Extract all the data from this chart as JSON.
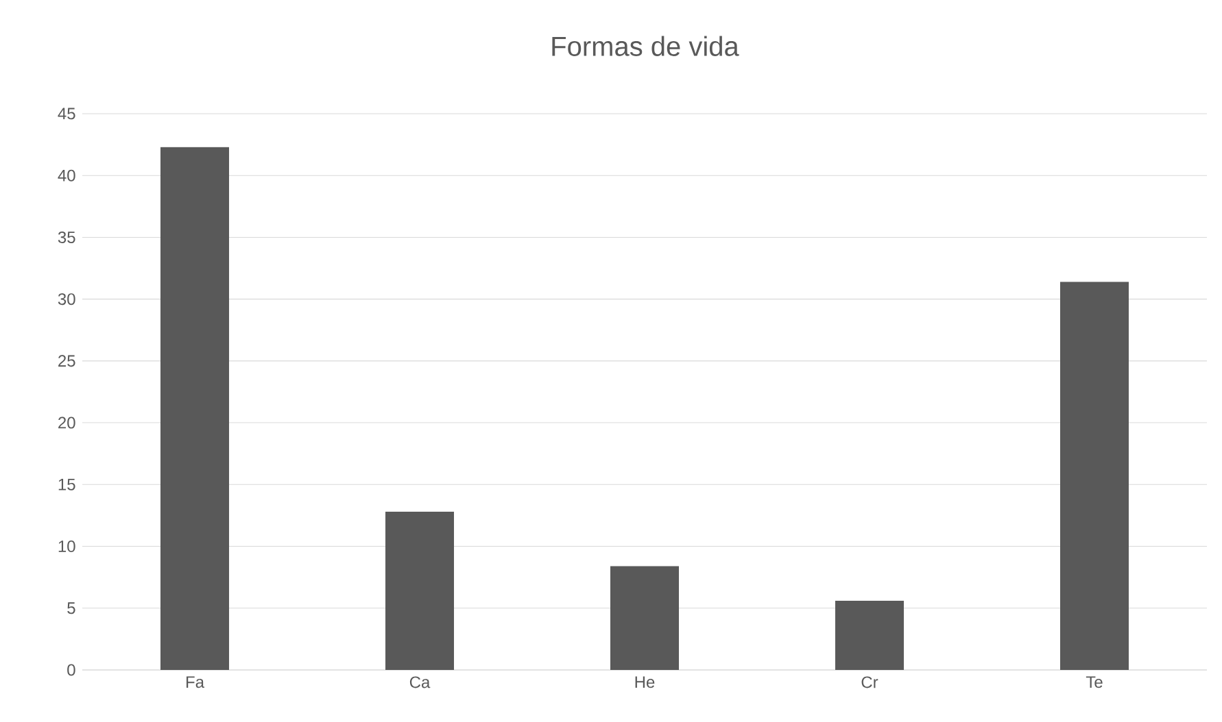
{
  "chart_data": {
    "type": "bar",
    "title": "Formas de vida",
    "categories": [
      "Fa",
      "Ca",
      "He",
      "Cr",
      "Te"
    ],
    "values": [
      42.3,
      12.8,
      8.4,
      5.6,
      31.4
    ],
    "color": "#595959",
    "ylim": [
      0,
      45
    ],
    "yticks": [
      0,
      5,
      10,
      15,
      20,
      25,
      30,
      35,
      40,
      45
    ],
    "grid": "y"
  }
}
